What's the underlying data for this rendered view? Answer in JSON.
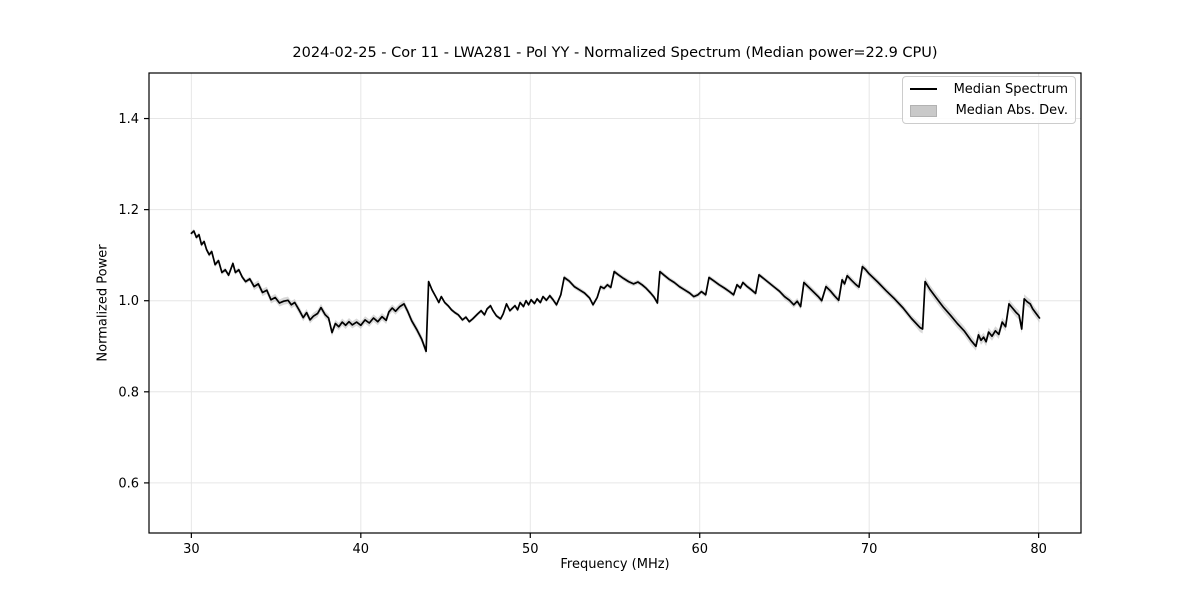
{
  "figure": {
    "background": "#ffffff"
  },
  "chart_data": {
    "type": "line",
    "title": "2024-02-25 - Cor 11 - LWA281 - Pol YY - Normalized Spectrum (Median power=22.9 CPU)",
    "xlabel": "Frequency (MHz)",
    "ylabel": "Normalized Power",
    "xlim": [
      27.5,
      82.5
    ],
    "ylim": [
      0.49,
      1.5
    ],
    "xticks": [
      30,
      40,
      50,
      60,
      70,
      80
    ],
    "yticks": [
      0.6,
      0.8,
      1.0,
      1.2,
      1.4
    ],
    "grid": true,
    "colors": {
      "line": "#000000",
      "band": "#b9b9b9",
      "grid": "#e6e6e6",
      "spine": "#000000",
      "text": "#000000",
      "background": "#ffffff"
    },
    "legend": {
      "position": "upper right",
      "entries": [
        {
          "label": "Median Spectrum",
          "type": "line",
          "color": "#000000"
        },
        {
          "label": "Median Abs. Dev.",
          "type": "band",
          "color": "#c9c9c9"
        }
      ]
    },
    "series": [
      {
        "name": "Median Spectrum",
        "type": "line",
        "color": "#000000",
        "points": [
          [
            30.0,
            1.148
          ],
          [
            30.15,
            1.153
          ],
          [
            30.3,
            1.139
          ],
          [
            30.45,
            1.145
          ],
          [
            30.6,
            1.123
          ],
          [
            30.75,
            1.13
          ],
          [
            30.9,
            1.112
          ],
          [
            31.05,
            1.101
          ],
          [
            31.2,
            1.108
          ],
          [
            31.4,
            1.079
          ],
          [
            31.6,
            1.088
          ],
          [
            31.8,
            1.062
          ],
          [
            32.0,
            1.068
          ],
          [
            32.2,
            1.056
          ],
          [
            32.45,
            1.082
          ],
          [
            32.6,
            1.062
          ],
          [
            32.8,
            1.068
          ],
          [
            33.0,
            1.052
          ],
          [
            33.2,
            1.042
          ],
          [
            33.45,
            1.048
          ],
          [
            33.7,
            1.031
          ],
          [
            33.95,
            1.037
          ],
          [
            34.2,
            1.018
          ],
          [
            34.45,
            1.023
          ],
          [
            34.7,
            1.002
          ],
          [
            34.95,
            1.007
          ],
          [
            35.2,
            0.995
          ],
          [
            35.45,
            0.999
          ],
          [
            35.7,
            1.001
          ],
          [
            35.9,
            0.991
          ],
          [
            36.1,
            0.996
          ],
          [
            36.35,
            0.98
          ],
          [
            36.6,
            0.963
          ],
          [
            36.8,
            0.974
          ],
          [
            37.0,
            0.958
          ],
          [
            37.2,
            0.966
          ],
          [
            37.45,
            0.972
          ],
          [
            37.65,
            0.985
          ],
          [
            37.9,
            0.969
          ],
          [
            38.1,
            0.962
          ],
          [
            38.3,
            0.93
          ],
          [
            38.5,
            0.95
          ],
          [
            38.7,
            0.943
          ],
          [
            38.9,
            0.953
          ],
          [
            39.1,
            0.946
          ],
          [
            39.3,
            0.954
          ],
          [
            39.5,
            0.947
          ],
          [
            39.75,
            0.953
          ],
          [
            40.0,
            0.946
          ],
          [
            40.25,
            0.958
          ],
          [
            40.5,
            0.951
          ],
          [
            40.75,
            0.962
          ],
          [
            41.0,
            0.954
          ],
          [
            41.25,
            0.965
          ],
          [
            41.5,
            0.957
          ],
          [
            41.65,
            0.975
          ],
          [
            41.85,
            0.984
          ],
          [
            42.05,
            0.977
          ],
          [
            42.3,
            0.987
          ],
          [
            42.55,
            0.993
          ],
          [
            42.75,
            0.978
          ],
          [
            43.0,
            0.956
          ],
          [
            43.3,
            0.937
          ],
          [
            43.6,
            0.915
          ],
          [
            43.85,
            0.889
          ],
          [
            44.0,
            1.042
          ],
          [
            44.2,
            1.024
          ],
          [
            44.45,
            1.007
          ],
          [
            44.6,
            0.996
          ],
          [
            44.75,
            1.009
          ],
          [
            44.95,
            0.996
          ],
          [
            45.15,
            0.989
          ],
          [
            45.35,
            0.98
          ],
          [
            45.55,
            0.974
          ],
          [
            45.75,
            0.969
          ],
          [
            46.0,
            0.958
          ],
          [
            46.2,
            0.964
          ],
          [
            46.4,
            0.954
          ],
          [
            46.6,
            0.96
          ],
          [
            46.9,
            0.971
          ],
          [
            47.1,
            0.978
          ],
          [
            47.3,
            0.969
          ],
          [
            47.45,
            0.982
          ],
          [
            47.65,
            0.989
          ],
          [
            47.8,
            0.978
          ],
          [
            48.0,
            0.967
          ],
          [
            48.25,
            0.96
          ],
          [
            48.4,
            0.971
          ],
          [
            48.6,
            0.993
          ],
          [
            48.8,
            0.978
          ],
          [
            49.1,
            0.989
          ],
          [
            49.25,
            0.98
          ],
          [
            49.4,
            0.996
          ],
          [
            49.6,
            0.987
          ],
          [
            49.75,
            1.0
          ],
          [
            49.9,
            0.991
          ],
          [
            50.05,
            1.002
          ],
          [
            50.25,
            0.994
          ],
          [
            50.4,
            1.004
          ],
          [
            50.6,
            0.996
          ],
          [
            50.75,
            1.009
          ],
          [
            50.95,
            1.001
          ],
          [
            51.15,
            1.011
          ],
          [
            51.35,
            1.002
          ],
          [
            51.55,
            0.991
          ],
          [
            51.8,
            1.013
          ],
          [
            52.0,
            1.051
          ],
          [
            52.3,
            1.043
          ],
          [
            52.6,
            1.031
          ],
          [
            52.9,
            1.024
          ],
          [
            53.2,
            1.017
          ],
          [
            53.5,
            1.006
          ],
          [
            53.7,
            0.991
          ],
          [
            53.95,
            1.007
          ],
          [
            54.15,
            1.031
          ],
          [
            54.35,
            1.027
          ],
          [
            54.55,
            1.035
          ],
          [
            54.75,
            1.029
          ],
          [
            54.95,
            1.064
          ],
          [
            55.2,
            1.057
          ],
          [
            55.5,
            1.049
          ],
          [
            55.8,
            1.042
          ],
          [
            56.1,
            1.037
          ],
          [
            56.35,
            1.041
          ],
          [
            56.6,
            1.035
          ],
          [
            56.85,
            1.027
          ],
          [
            57.1,
            1.017
          ],
          [
            57.3,
            1.008
          ],
          [
            57.5,
            0.995
          ],
          [
            57.65,
            1.064
          ],
          [
            57.9,
            1.056
          ],
          [
            58.2,
            1.047
          ],
          [
            58.5,
            1.04
          ],
          [
            58.8,
            1.031
          ],
          [
            59.1,
            1.024
          ],
          [
            59.4,
            1.017
          ],
          [
            59.65,
            1.009
          ],
          [
            59.9,
            1.013
          ],
          [
            60.1,
            1.02
          ],
          [
            60.35,
            1.013
          ],
          [
            60.55,
            1.051
          ],
          [
            60.85,
            1.043
          ],
          [
            61.15,
            1.035
          ],
          [
            61.45,
            1.028
          ],
          [
            61.75,
            1.02
          ],
          [
            62.0,
            1.013
          ],
          [
            62.2,
            1.035
          ],
          [
            62.4,
            1.028
          ],
          [
            62.55,
            1.04
          ],
          [
            62.8,
            1.031
          ],
          [
            63.05,
            1.024
          ],
          [
            63.3,
            1.016
          ],
          [
            63.5,
            1.057
          ],
          [
            63.8,
            1.048
          ],
          [
            64.1,
            1.039
          ],
          [
            64.4,
            1.03
          ],
          [
            64.7,
            1.021
          ],
          [
            65.0,
            1.009
          ],
          [
            65.3,
            1.001
          ],
          [
            65.55,
            0.991
          ],
          [
            65.75,
            0.999
          ],
          [
            65.95,
            0.987
          ],
          [
            66.15,
            1.04
          ],
          [
            66.45,
            1.029
          ],
          [
            66.75,
            1.018
          ],
          [
            67.0,
            1.009
          ],
          [
            67.2,
            1.0
          ],
          [
            67.45,
            1.031
          ],
          [
            67.7,
            1.022
          ],
          [
            67.95,
            1.011
          ],
          [
            68.2,
            1.001
          ],
          [
            68.4,
            1.046
          ],
          [
            68.55,
            1.037
          ],
          [
            68.7,
            1.055
          ],
          [
            68.95,
            1.045
          ],
          [
            69.2,
            1.036
          ],
          [
            69.4,
            1.03
          ],
          [
            69.6,
            1.075
          ],
          [
            69.8,
            1.068
          ],
          [
            70.0,
            1.059
          ],
          [
            70.5,
            1.041
          ],
          [
            71.0,
            1.022
          ],
          [
            71.5,
            1.004
          ],
          [
            72.0,
            0.984
          ],
          [
            72.5,
            0.961
          ],
          [
            73.0,
            0.941
          ],
          [
            73.15,
            0.938
          ],
          [
            73.3,
            1.042
          ],
          [
            73.6,
            1.024
          ],
          [
            74.0,
            1.004
          ],
          [
            74.4,
            0.985
          ],
          [
            74.8,
            0.968
          ],
          [
            75.2,
            0.95
          ],
          [
            75.6,
            0.934
          ],
          [
            76.0,
            0.913
          ],
          [
            76.3,
            0.9
          ],
          [
            76.45,
            0.925
          ],
          [
            76.6,
            0.913
          ],
          [
            76.75,
            0.92
          ],
          [
            76.9,
            0.91
          ],
          [
            77.05,
            0.931
          ],
          [
            77.25,
            0.922
          ],
          [
            77.45,
            0.934
          ],
          [
            77.65,
            0.926
          ],
          [
            77.85,
            0.953
          ],
          [
            78.05,
            0.943
          ],
          [
            78.25,
            0.993
          ],
          [
            78.45,
            0.984
          ],
          [
            78.65,
            0.975
          ],
          [
            78.85,
            0.968
          ],
          [
            79.0,
            0.938
          ],
          [
            79.15,
            1.004
          ],
          [
            79.35,
            0.997
          ],
          [
            79.5,
            0.993
          ],
          [
            79.65,
            0.982
          ],
          [
            79.85,
            0.972
          ],
          [
            80.05,
            0.962
          ]
        ]
      },
      {
        "name": "Median Abs. Dev.",
        "type": "band",
        "color": "#b9b9b9",
        "opacity": 0.55,
        "mad_profile": [
          [
            30.0,
            33.5,
            0.005
          ],
          [
            33.5,
            44.0,
            0.008
          ],
          [
            44.0,
            51.0,
            0.004
          ],
          [
            51.0,
            65.0,
            0.005
          ],
          [
            65.0,
            73.0,
            0.007
          ],
          [
            73.0,
            80.2,
            0.01
          ]
        ]
      }
    ]
  }
}
